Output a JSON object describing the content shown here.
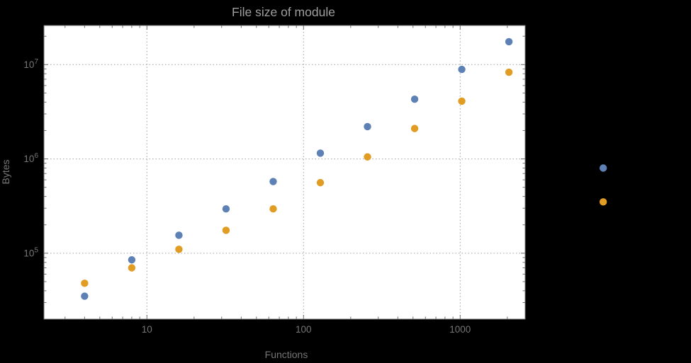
{
  "colors": {
    "background": "#000000",
    "plot_background": "#ffffff",
    "frame": "#6f6f6f",
    "gridline": "#a0a0a0",
    "title_text": "#9e9e9e",
    "tick_text": "#767676",
    "axis_label_text": "#767676",
    "series_blue": "#5e81b5",
    "series_orange": "#e19c24"
  },
  "chart_data": {
    "type": "scatter",
    "title": "File size of module",
    "xlabel": "Functions",
    "ylabel": "Bytes",
    "x_scale": "log",
    "y_scale": "log",
    "x_range": [
      2.2,
      2600
    ],
    "y_range": [
      20000,
      26000000
    ],
    "grid": true,
    "legend": false,
    "x_ticks": [
      {
        "value": 10,
        "label": "10"
      },
      {
        "value": 100,
        "label": "100"
      },
      {
        "value": 1000,
        "label": "1000"
      }
    ],
    "y_ticks": [
      {
        "value": 100000,
        "base": "10",
        "exp": "5"
      },
      {
        "value": 1000000,
        "base": "10",
        "exp": "6"
      },
      {
        "value": 10000000,
        "base": "10",
        "exp": "7"
      }
    ],
    "series": [
      {
        "name": "blue",
        "color": "#5e81b5",
        "marker": "circle",
        "points": [
          [
            4,
            35000
          ],
          [
            8,
            85000
          ],
          [
            16,
            155000
          ],
          [
            32,
            295000
          ],
          [
            64,
            575000
          ],
          [
            128,
            1150000
          ],
          [
            256,
            2200000
          ],
          [
            512,
            4300000
          ],
          [
            1024,
            8900000
          ],
          [
            2048,
            17500000
          ],
          [
            8192,
            800000
          ]
        ]
      },
      {
        "name": "orange",
        "color": "#e19c24",
        "marker": "circle",
        "points": [
          [
            4,
            48000
          ],
          [
            8,
            70000
          ],
          [
            16,
            110000
          ],
          [
            32,
            175000
          ],
          [
            64,
            295000
          ],
          [
            128,
            560000
          ],
          [
            256,
            1050000
          ],
          [
            512,
            2100000
          ],
          [
            1024,
            4100000
          ],
          [
            2048,
            8300000
          ],
          [
            8192,
            350000
          ]
        ]
      }
    ]
  }
}
